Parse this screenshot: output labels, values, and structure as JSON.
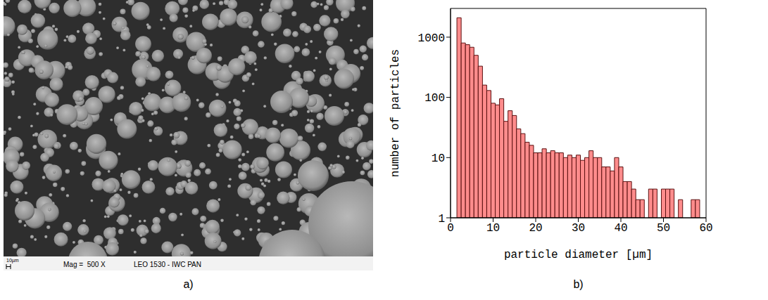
{
  "image": {
    "label": "a)",
    "scale_bar": "10µm",
    "magnification": "Mag =  500 X",
    "instrument": "LEO 1530 - IWC PAN"
  },
  "chart_data": {
    "type": "histogram",
    "label": "b)",
    "x_label": "particle diameter [µm]",
    "y_label": "number of particles",
    "bins": [
      1.5,
      2.5,
      3.5,
      4.5,
      5.5,
      6.5,
      7.5,
      8.5,
      9.5,
      10.5,
      11.5,
      12.5,
      13.5,
      14.5,
      15.5,
      16.5,
      17.5,
      18.5,
      19.5,
      20.5,
      21.5,
      22.5,
      23.5,
      24.5,
      25.5,
      26.5,
      27.5,
      28.5,
      29.5,
      30.5,
      31.5,
      32.5,
      33.5,
      34.5,
      35.5,
      36.5,
      37.5,
      38.5,
      39.5,
      40.5,
      41.5,
      42.5,
      43.5,
      44.5,
      45.5,
      46.5,
      47.5,
      48.5,
      49.5,
      50.5,
      51.5,
      52.5,
      53.5,
      54.5,
      55.5,
      56.5,
      57.5,
      58.5
    ],
    "values": [
      2100,
      800,
      750,
      680,
      500,
      330,
      160,
      130,
      80,
      75,
      95,
      40,
      60,
      50,
      30,
      25,
      18,
      16,
      12,
      12,
      14,
      12,
      13,
      12,
      12,
      10,
      11,
      10,
      11,
      9,
      10,
      13,
      10,
      10,
      7,
      7,
      6,
      10,
      7,
      4,
      4,
      3,
      2,
      2,
      null,
      3,
      3,
      null,
      3,
      3,
      3,
      null,
      2,
      null,
      null,
      2,
      2
    ],
    "color": "#ff8c8c",
    "xlim": [
      0,
      60
    ],
    "xticks": [
      0,
      10,
      20,
      30,
      40,
      50,
      60
    ],
    "ylim": [
      1,
      3000
    ],
    "yticks": [
      1,
      10,
      100,
      1000
    ],
    "log": "y"
  }
}
